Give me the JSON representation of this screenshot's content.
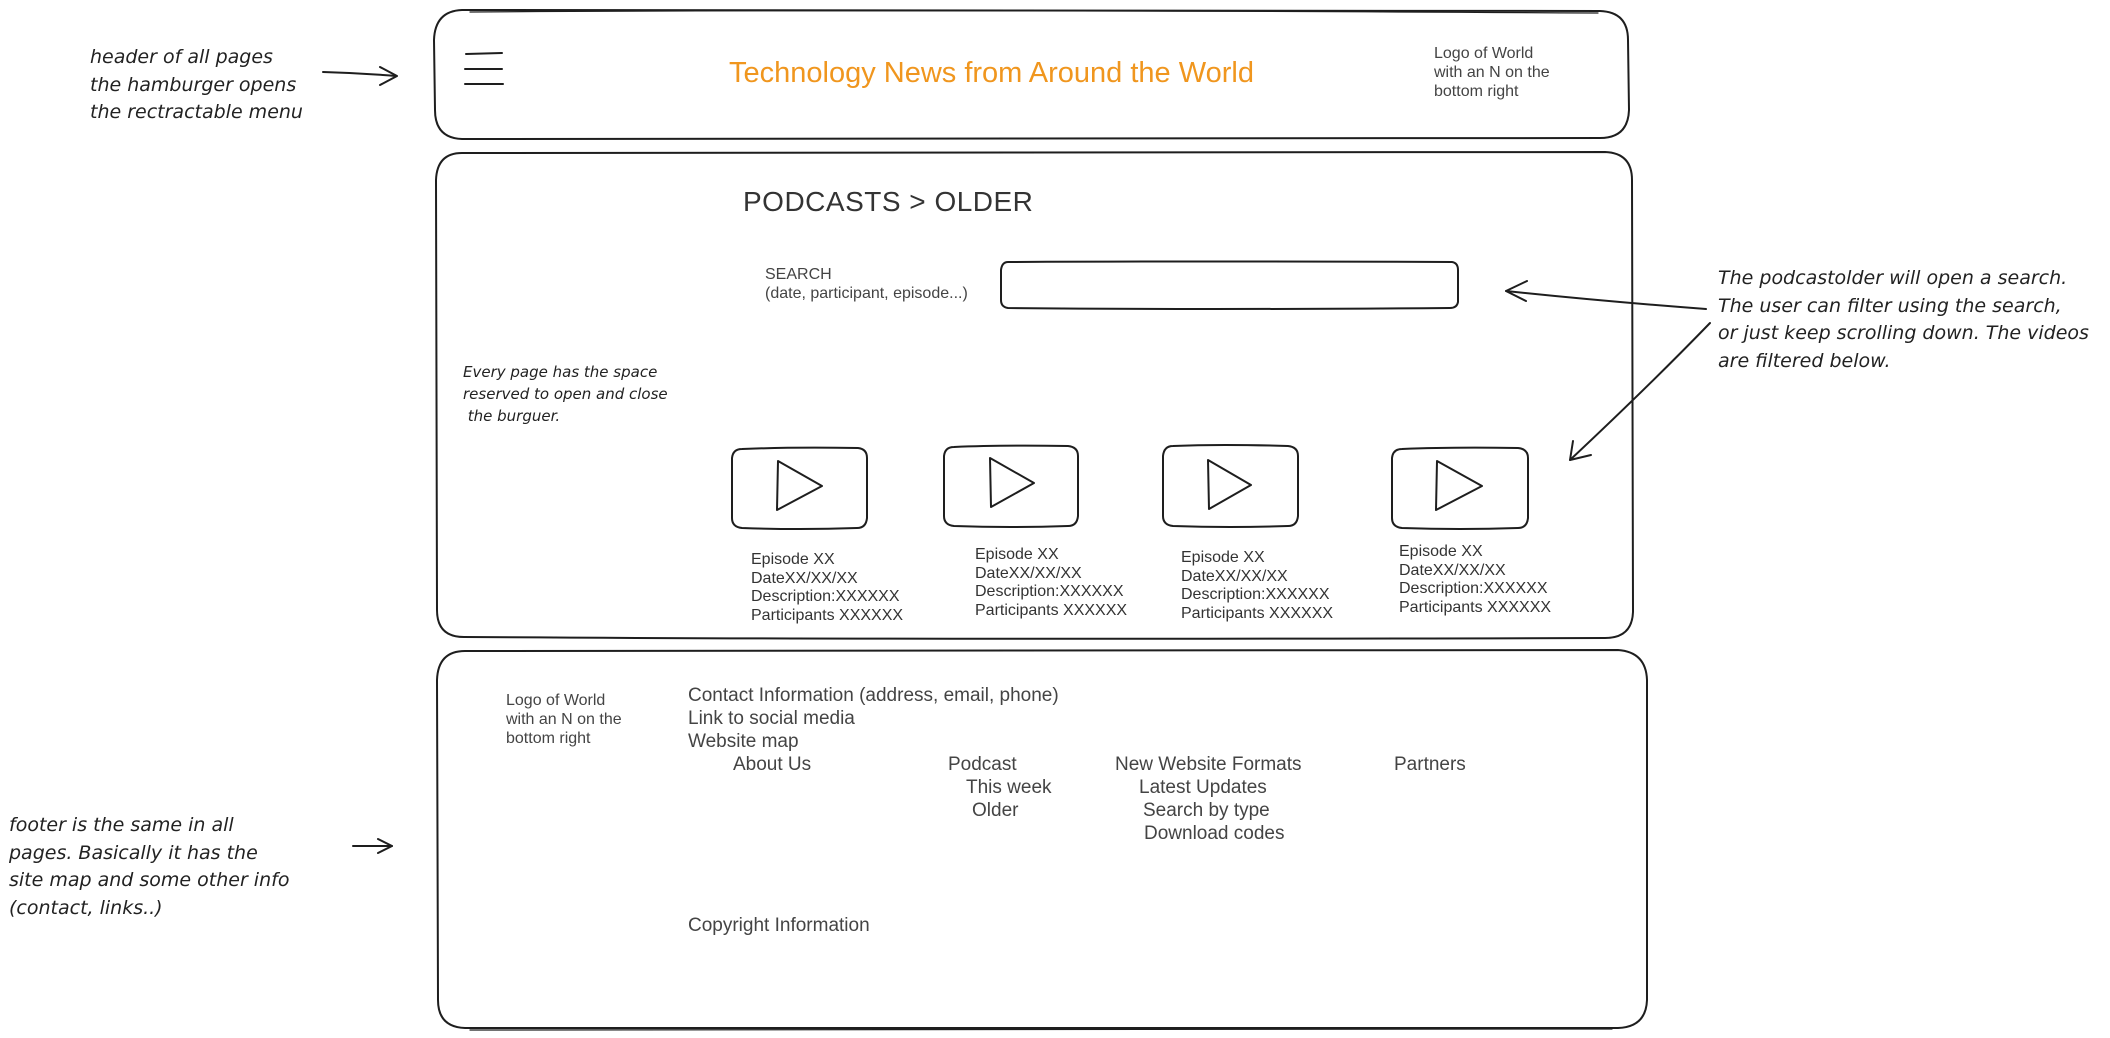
{
  "annotations": {
    "header_note": [
      "header of all pages",
      "the hamburger opens",
      "the rectractable menu"
    ],
    "menu_space_note": [
      "Every page has the space",
      "reserved to open and close",
      " the burguer."
    ],
    "search_note": [
      "The podcastolder will open a search.",
      "The user can filter using the search,",
      "or just keep scrolling down. The videos",
      "are filtered below."
    ],
    "footer_note": [
      "footer is the same in all",
      "pages. Basically it has the",
      "site map and some other info",
      "(contact, links..)"
    ]
  },
  "header": {
    "menu_icon": "hamburger-menu-icon",
    "title": "Technology News from Around the World",
    "logo_lines": [
      "Logo of World",
      "with an N on the",
      "bottom right"
    ]
  },
  "main": {
    "breadcrumb": "PODCASTS > OLDER",
    "search": {
      "label_lines": [
        "SEARCH",
        "(date, participant, episode...)"
      ],
      "value": ""
    },
    "episodes": [
      {
        "icon": "play-icon",
        "lines": [
          "Episode XX",
          "DateXX/XX/XX",
          "Description:XXXXXX",
          "Participants XXXXXX"
        ]
      },
      {
        "icon": "play-icon",
        "lines": [
          "Episode XX",
          "DateXX/XX/XX",
          "Description:XXXXXX",
          "Participants XXXXXX"
        ]
      },
      {
        "icon": "play-icon",
        "lines": [
          "Episode XX",
          "DateXX/XX/XX",
          "Description:XXXXXX",
          "Participants XXXXXX"
        ]
      },
      {
        "icon": "play-icon",
        "lines": [
          "Episode XX",
          "DateXX/XX/XX",
          "Description:XXXXXX",
          "Participants XXXXXX"
        ]
      }
    ]
  },
  "footer": {
    "logo_lines": [
      "Logo of World",
      "with an N on the",
      "bottom right"
    ],
    "contact": "Contact Information (address, email, phone)",
    "social": "Link to social media",
    "sitemap_label": "Website map",
    "sitemap": {
      "about": "About Us",
      "podcast": "Podcast",
      "podcast_week": "This week",
      "podcast_older": "Older",
      "formats": "New Website Formats",
      "formats_updates": "Latest Updates",
      "formats_search": "Search by type",
      "formats_download": "Download codes",
      "partners": "Partners"
    },
    "copyright": "Copyright Information"
  },
  "colors": {
    "title_orange": "#f0961e",
    "stroke": "#1e1e1e"
  }
}
